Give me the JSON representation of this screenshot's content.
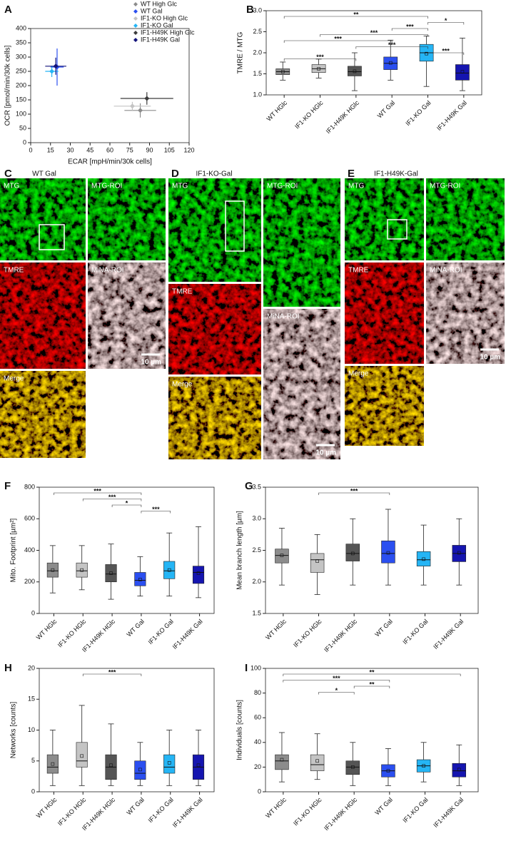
{
  "chart_data": [
    {
      "type": "scatter",
      "panel": "A",
      "xlabel": "ECAR [mpH/min/30k cells]",
      "ylabel": "OCR [pmol/min/30k cells]",
      "xlim": [
        0,
        120
      ],
      "xticks": [
        0,
        15,
        30,
        45,
        60,
        75,
        90,
        105,
        120
      ],
      "ylim": [
        0,
        400
      ],
      "yticks": [
        0,
        50,
        100,
        150,
        200,
        250,
        300,
        350,
        400
      ],
      "legend": "upper right",
      "series": [
        {
          "name": "WT High Glc",
          "color": "#8c8c8c",
          "x": [
            83
          ],
          "y": [
            113
          ],
          "xerr": [
            12
          ],
          "yerr": [
            25
          ]
        },
        {
          "name": "WT Gal",
          "color": "#2b4ff0",
          "x": [
            20
          ],
          "y": [
            265
          ],
          "xerr": [
            5
          ],
          "yerr": [
            65
          ]
        },
        {
          "name": "IF1-KO High Glc",
          "color": "#c4c4c4",
          "x": [
            77
          ],
          "y": [
            128
          ],
          "xerr": [
            14
          ],
          "yerr": [
            15
          ]
        },
        {
          "name": "IF1-KO Gal",
          "color": "#25b5f5",
          "x": [
            16
          ],
          "y": [
            250
          ],
          "xerr": [
            5
          ],
          "yerr": [
            20
          ]
        },
        {
          "name": "IF1-H49K High Glc",
          "color": "#3c3c3c",
          "x": [
            88
          ],
          "y": [
            155
          ],
          "xerr": [
            20
          ],
          "yerr": [
            22
          ]
        },
        {
          "name": "IF1-H49K Gal",
          "color": "#11127a",
          "x": [
            19
          ],
          "y": [
            268
          ],
          "xerr": [
            8
          ],
          "yerr": [
            30
          ]
        }
      ]
    },
    {
      "type": "box",
      "panel": "B",
      "ylabel": "TMRE / MTG",
      "categories": [
        "WT HGlc",
        "IF1-KO HGlc",
        "IF1-H49K HGlc",
        "WT Gal",
        "IF1-KO Gal",
        "IF1-H49K Gal"
      ],
      "colors": [
        "#8c8c8c",
        "#c4c4c4",
        "#555555",
        "#2b4ff0",
        "#25b5f5",
        "#1515b0"
      ],
      "ylim": [
        1,
        3
      ],
      "yticks": [
        {
          "value": 1,
          "label": "1.0"
        },
        1.5,
        {
          "value": 2,
          "label": "2.0"
        },
        2.5,
        {
          "value": 3,
          "label": "3.0"
        }
      ],
      "whisker_low": [
        1.35,
        1.4,
        1.1,
        1.35,
        1.2,
        1.1
      ],
      "q1": [
        1.48,
        1.53,
        1.45,
        1.6,
        1.8,
        1.35
      ],
      "median": [
        1.55,
        1.62,
        1.55,
        1.75,
        2.0,
        1.52
      ],
      "q3": [
        1.62,
        1.72,
        1.68,
        1.9,
        2.2,
        1.72
      ],
      "whisker_high": [
        1.78,
        1.85,
        2.0,
        2.3,
        2.4,
        2.35
      ],
      "mean": [
        1.55,
        1.62,
        1.56,
        1.76,
        1.98,
        1.55
      ],
      "brackets": [
        {
          "between": [
            0,
            4
          ],
          "label": "**"
        },
        {
          "between": [
            4,
            5
          ],
          "label": "*"
        },
        {
          "between": [
            3,
            4
          ],
          "label": "***"
        },
        {
          "between": [
            1,
            4
          ],
          "label": "***"
        },
        {
          "between": [
            0,
            3
          ],
          "label": "***"
        },
        {
          "between": [
            2,
            4
          ],
          "label": "***"
        },
        {
          "between": [
            4,
            5
          ],
          "label": "***"
        },
        {
          "between": [
            0,
            2
          ],
          "label": "***"
        }
      ]
    },
    {
      "type": "box",
      "panel": "F",
      "ylabel": "Mito. Footprint [µm²]",
      "categories": [
        "WT HGlc",
        "IF1-KO HGlc",
        "IF1-H49K HGlc",
        "WT Gal",
        "IF1-KO Gal",
        "IF1-H49K Gal"
      ],
      "colors": [
        "#8c8c8c",
        "#c4c4c4",
        "#555555",
        "#2b4ff0",
        "#25b5f5",
        "#1515b0"
      ],
      "ylim": [
        0,
        800
      ],
      "yticks": [
        0,
        200,
        400,
        600,
        800
      ],
      "whisker_low": [
        130,
        150,
        90,
        110,
        110,
        100
      ],
      "q1": [
        230,
        230,
        200,
        175,
        220,
        190
      ],
      "median": [
        270,
        270,
        250,
        210,
        270,
        260
      ],
      "q3": [
        320,
        320,
        310,
        260,
        330,
        300
      ],
      "whisker_high": [
        430,
        430,
        440,
        360,
        510,
        550
      ],
      "mean": [
        275,
        275,
        255,
        215,
        275,
        255
      ],
      "brackets": [
        {
          "between": [
            0,
            3
          ],
          "label": "***"
        },
        {
          "between": [
            1,
            3
          ],
          "label": "***"
        },
        {
          "between": [
            2,
            3
          ],
          "label": "*"
        },
        {
          "between": [
            3,
            4
          ],
          "label": "***"
        }
      ]
    },
    {
      "type": "box",
      "panel": "G",
      "ylabel": "Mean branch length [µm]",
      "categories": [
        "WT HGlc",
        "IF1-KO HGlc",
        "IF1-H49K HGlc",
        "WT Gal",
        "IF1-KO Gal",
        "IF1-H49K Gal"
      ],
      "colors": [
        "#8c8c8c",
        "#c4c4c4",
        "#555555",
        "#2b4ff0",
        "#25b5f5",
        "#1515b0"
      ],
      "ylim": [
        1.5,
        3.5
      ],
      "yticks": [
        1.5,
        {
          "value": 2,
          "label": "2.0"
        },
        2.5,
        {
          "value": 3,
          "label": "3.0"
        },
        3.5
      ],
      "whisker_low": [
        1.95,
        1.8,
        1.95,
        1.95,
        1.95,
        1.95
      ],
      "q1": [
        2.3,
        2.15,
        2.33,
        2.3,
        2.25,
        2.32
      ],
      "median": [
        2.42,
        2.35,
        2.45,
        2.45,
        2.35,
        2.45
      ],
      "q3": [
        2.52,
        2.45,
        2.6,
        2.65,
        2.48,
        2.58
      ],
      "whisker_high": [
        2.85,
        2.75,
        3.0,
        3.15,
        2.9,
        3.0
      ],
      "mean": [
        2.42,
        2.33,
        2.45,
        2.46,
        2.36,
        2.46
      ],
      "brackets": [
        {
          "between": [
            1,
            3
          ],
          "label": "***"
        }
      ]
    },
    {
      "type": "box",
      "panel": "H",
      "ylabel": "Networks [counts]",
      "categories": [
        "WT HGlc",
        "IF1-KO HGlc",
        "IF1-H49K HGlc",
        "WT Gal",
        "IF1-KO Gal",
        "IF1-H49K Gal"
      ],
      "colors": [
        "#8c8c8c",
        "#c4c4c4",
        "#555555",
        "#2b4ff0",
        "#25b5f5",
        "#1515b0"
      ],
      "ylim": [
        0,
        20
      ],
      "yticks": [
        0,
        5,
        10,
        15,
        20
      ],
      "whisker_low": [
        1,
        1,
        1,
        1,
        1,
        1
      ],
      "q1": [
        3,
        4,
        2,
        2,
        3,
        2
      ],
      "median": [
        4,
        5,
        4,
        3,
        4,
        4
      ],
      "q3": [
        6,
        8,
        6,
        5,
        6,
        6
      ],
      "whisker_high": [
        10,
        14,
        11,
        8,
        10,
        10
      ],
      "mean": [
        4.5,
        5.8,
        4.3,
        3.6,
        4.7,
        4.3
      ],
      "brackets": [
        {
          "between": [
            1,
            3
          ],
          "label": "***"
        }
      ]
    },
    {
      "type": "box",
      "panel": "I",
      "ylabel": "Individuals [counts]",
      "categories": [
        "WT HGlc",
        "IF1-KO HGlc",
        "IF1-H49K HGlc",
        "WT Gal",
        "IF1-KO Gal",
        "IF1-H49K Gal"
      ],
      "colors": [
        "#8c8c8c",
        "#c4c4c4",
        "#555555",
        "#2b4ff0",
        "#25b5f5",
        "#1515b0"
      ],
      "ylim": [
        0,
        100
      ],
      "yticks": [
        0,
        20,
        40,
        60,
        80,
        100
      ],
      "whisker_low": [
        8,
        10,
        5,
        5,
        8,
        5
      ],
      "q1": [
        18,
        17,
        14,
        12,
        16,
        12
      ],
      "median": [
        25,
        22,
        20,
        17,
        21,
        17
      ],
      "q3": [
        30,
        30,
        25,
        22,
        26,
        23
      ],
      "whisker_high": [
        48,
        47,
        40,
        35,
        40,
        38
      ],
      "mean": [
        26,
        25,
        20,
        17,
        21,
        18
      ],
      "brackets": [
        {
          "between": [
            0,
            5
          ],
          "label": "**"
        },
        {
          "between": [
            0,
            3
          ],
          "label": "***"
        },
        {
          "between": [
            2,
            3
          ],
          "label": "**"
        },
        {
          "between": [
            1,
            2
          ],
          "label": "*"
        }
      ]
    }
  ],
  "panels": [
    {
      "letter": "C",
      "title": "WT Gal",
      "images": [
        {
          "label": "MTG"
        },
        {
          "label": "MTG-ROI"
        },
        {
          "label": "TMRE"
        },
        {
          "label": "MiNA-ROI",
          "scale": "10 µm"
        },
        {
          "label": "Merge"
        }
      ]
    },
    {
      "letter": "D",
      "title": "IF1-KO-Gal",
      "images": [
        {
          "label": "MTG"
        },
        {
          "label": "MTG-ROI"
        },
        {
          "label": "TMRE"
        },
        {
          "label": "Merge"
        },
        {
          "label": "MiNA-ROI",
          "scale": "10 µm"
        }
      ]
    },
    {
      "letter": "E",
      "title": "IF1-H49K-Gal",
      "images": [
        {
          "label": "MTG"
        },
        {
          "label": "MTG-ROI"
        },
        {
          "label": "TMRE"
        },
        {
          "label": "MiNA-ROI",
          "scale": "10 µm"
        },
        {
          "label": "Merge"
        }
      ]
    }
  ]
}
